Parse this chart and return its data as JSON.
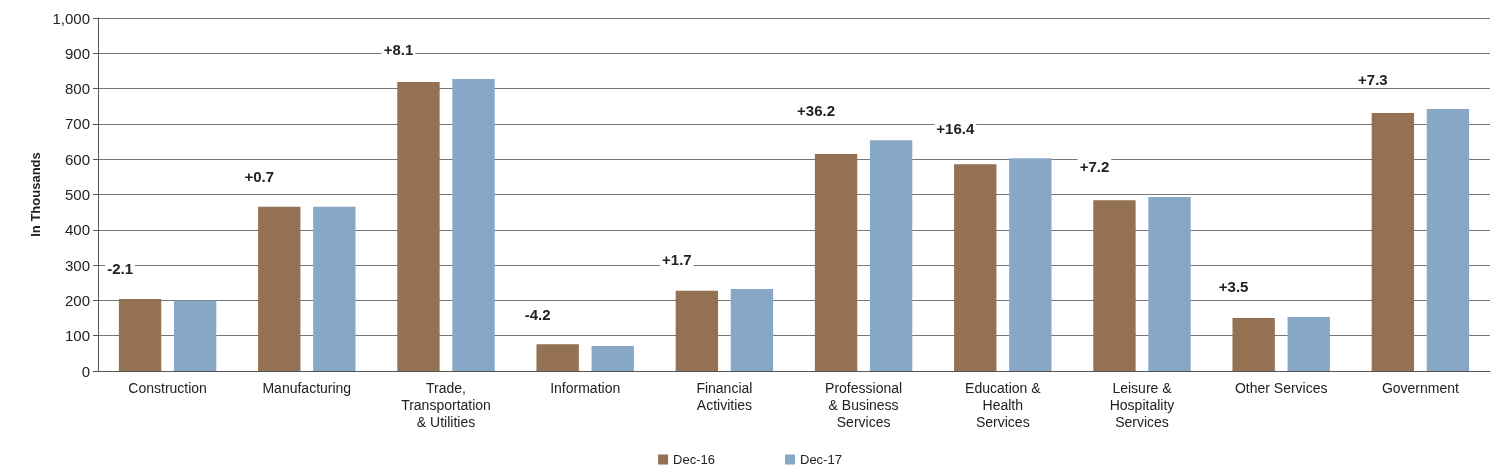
{
  "chart_data": {
    "type": "bar",
    "ylabel": "In Thousands",
    "categories": [
      "Construction",
      "Manufacturing",
      "Trade,\nTransportation\n& Utilities",
      "Information",
      "Financial\nActivities",
      "Professional\n& Business\nServices",
      "Education &\nHealth\nServices",
      "Leisure &\nHospitality\nServices",
      "Other Services",
      "Government"
    ],
    "series": [
      {
        "name": "Dec-16",
        "color": "#937152",
        "values": [
          204,
          465,
          819,
          76,
          227,
          615,
          586,
          484,
          150,
          731
        ]
      },
      {
        "name": "Dec-17",
        "color": "#87a7c6",
        "values": [
          200,
          465,
          827,
          71,
          232,
          654,
          603,
          493,
          153,
          742
        ]
      }
    ],
    "annotations": [
      "-2.1",
      "+0.7",
      "+8.1",
      "-4.2",
      "+1.7",
      "+36.2",
      "+16.4",
      "+7.2",
      "+3.5",
      "+7.3"
    ],
    "ylim": [
      0,
      1000
    ],
    "yticks": [
      0,
      100,
      200,
      300,
      400,
      500,
      600,
      700,
      800,
      900,
      {
        "value": 1000,
        "label": "1,000"
      }
    ],
    "grid": "y",
    "legend": "bottom"
  }
}
